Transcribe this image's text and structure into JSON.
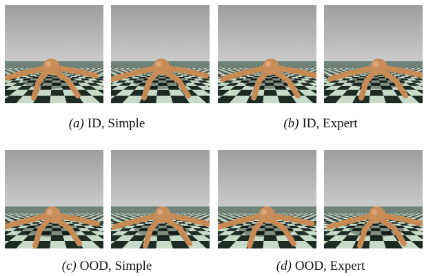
{
  "panels": [
    {
      "label": "(a)",
      "text": "ID, Simple"
    },
    {
      "label": "(b)",
      "text": "ID, Expert"
    },
    {
      "label": "(c)",
      "text": "OOD, Simple"
    },
    {
      "label": "(d)",
      "text": "OOD, Expert"
    }
  ]
}
